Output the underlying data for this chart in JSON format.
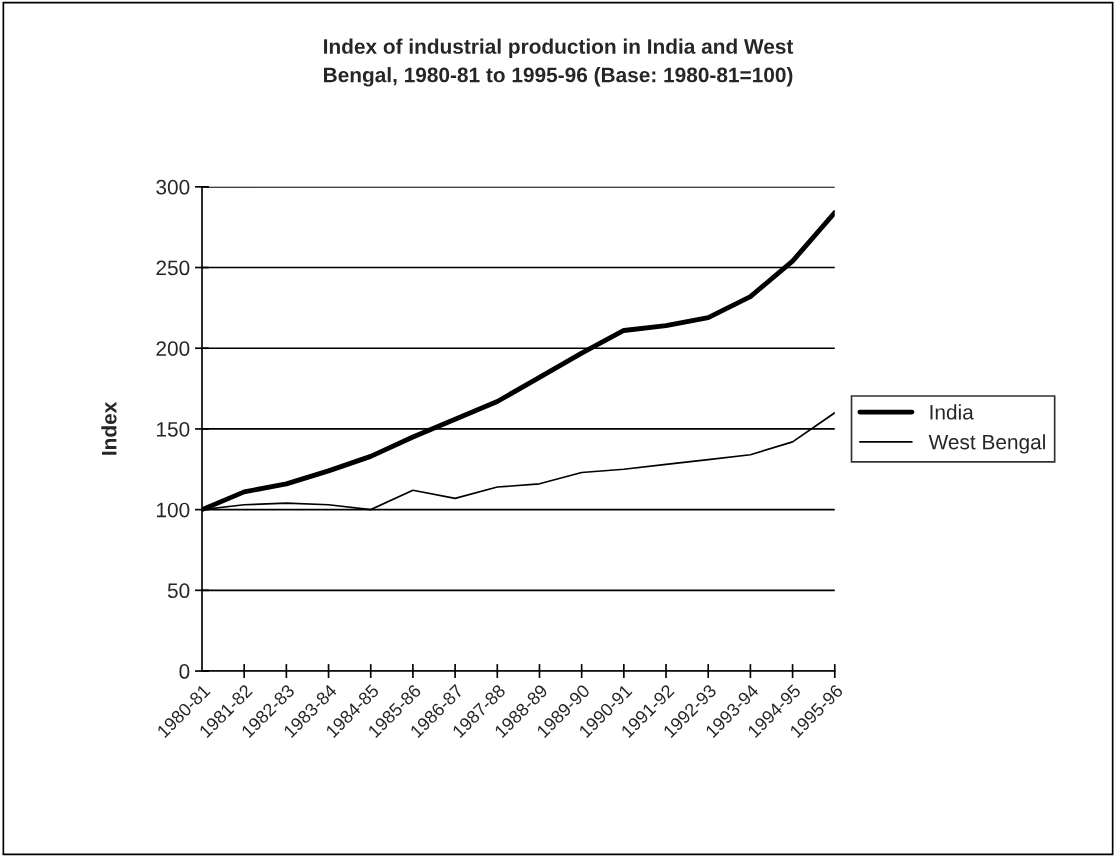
{
  "chart_data": {
    "type": "line",
    "title": "Index of industrial production in India and West\nBengal, 1980-81 to 1995-96 (Base: 1980-81=100)",
    "ylabel": "Index",
    "categories": [
      "1980-81",
      "1981-82",
      "1982-83",
      "1983-84",
      "1984-85",
      "1985-86",
      "1986-87",
      "1987-88",
      "1988-89",
      "1989-90",
      "1990-91",
      "1991-92",
      "1992-93",
      "1993-94",
      "1994-95",
      "1995-96"
    ],
    "series": [
      {
        "name": "India",
        "color": "#000000",
        "values": [
          100,
          111,
          116,
          124,
          133,
          145,
          156,
          167,
          182,
          197,
          211,
          214,
          219,
          232,
          254,
          284
        ]
      },
      {
        "name": "West Bengal",
        "color": "#000000",
        "values": [
          100,
          103,
          104,
          103,
          100,
          112,
          107,
          114,
          116,
          123,
          125,
          128,
          131,
          134,
          142,
          160
        ]
      }
    ],
    "ylim": [
      0,
      300
    ],
    "yticks": [
      0,
      50,
      100,
      150,
      200,
      250,
      300
    ],
    "grid": "y",
    "legend": "right",
    "marker": "none",
    "line_style": "solid"
  }
}
